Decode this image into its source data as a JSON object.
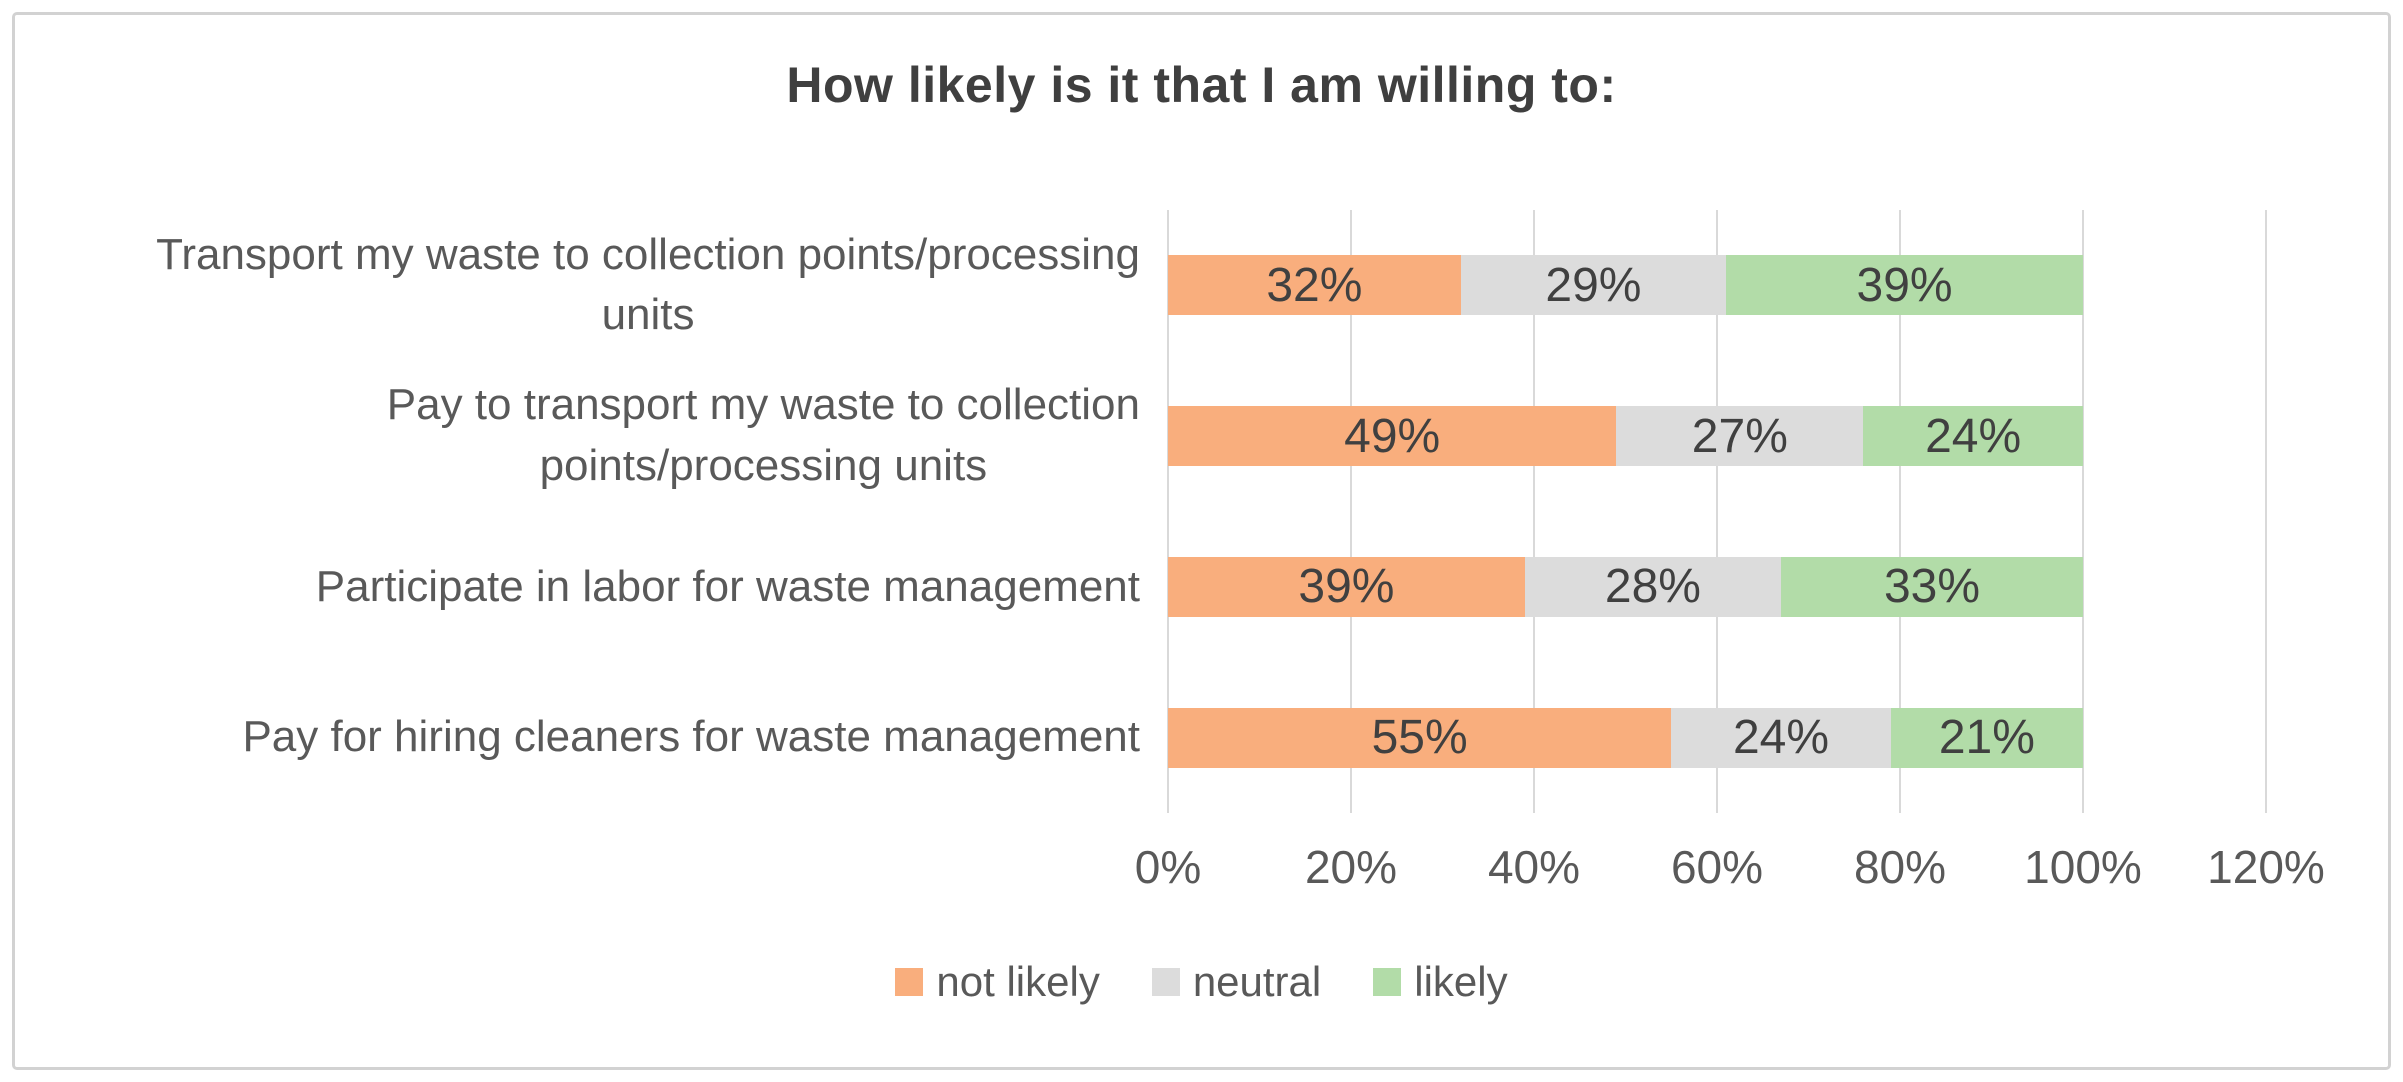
{
  "frame": {
    "background_color": "#ffffff",
    "border_color": "#d2d2d2"
  },
  "chart_data": {
    "type": "bar",
    "orientation": "horizontal",
    "stacked": true,
    "title": "How likely is it that I am willing to:",
    "title_color": "#3f3f3f",
    "categories": [
      "Transport my waste to collection points/processing\nunits",
      "Pay to transport my waste to collection\npoints/processing units",
      "Participate in labor for waste management",
      "Pay for hiring cleaners for waste management"
    ],
    "series": [
      {
        "name": "not likely",
        "color": "#F9AE7D",
        "values": [
          32,
          49,
          39,
          55
        ]
      },
      {
        "name": "neutral",
        "color": "#DCDCDC",
        "values": [
          29,
          27,
          28,
          24
        ]
      },
      {
        "name": "likely",
        "color": "#B2DCA8",
        "values": [
          39,
          24,
          33,
          21
        ]
      }
    ],
    "value_suffix": "%",
    "x_axis": {
      "min": 0,
      "max": 120,
      "step": 20,
      "ticks": [
        "0%",
        "20%",
        "40%",
        "60%",
        "80%",
        "100%",
        "120%"
      ]
    },
    "grid": true,
    "gridline_color": "#d9d9d9",
    "legend_position": "bottom",
    "category_label_color": "#595959",
    "tick_label_color": "#595959",
    "value_label_color": "#404040"
  }
}
